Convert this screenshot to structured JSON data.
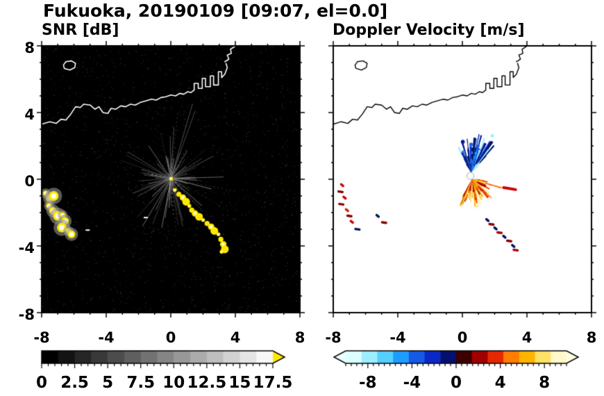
{
  "header": {
    "title": "Fukuoka, 20190109 [09:07, el=0.0]"
  },
  "chart_data": [
    {
      "type": "heatmap",
      "title": "SNR [dB]",
      "xlabel": "",
      "ylabel": "",
      "xlim": [
        -8,
        8
      ],
      "ylim": [
        -8,
        8
      ],
      "xticks": [
        -8,
        -4,
        0,
        4,
        8
      ],
      "yticks": [
        8,
        4,
        0,
        -4,
        -8
      ],
      "xticklabels": [
        "-8",
        "-4",
        "0",
        "4",
        "8"
      ],
      "yticklabels": [
        "8",
        "4",
        "0",
        "-4",
        "-8"
      ],
      "minor_tick_step": 1,
      "background": "#000000",
      "grid": false,
      "colorbar": {
        "vmin": 0,
        "vmax": 17.5,
        "ticks": [
          0,
          2.5,
          5,
          7.5,
          10,
          12.5,
          15,
          17.5
        ],
        "tick_labels": [
          "0",
          "2.5",
          "5",
          "7.5",
          "10",
          "12.5",
          "15",
          "17.5"
        ],
        "minor_step": 0.5,
        "colors": [
          "#000000",
          "#131313",
          "#262626",
          "#393939",
          "#4c4c4c",
          "#5f5f5f",
          "#727272",
          "#858585",
          "#989898",
          "#ababab",
          "#bebebe",
          "#d1d1d1",
          "#e4e4e4",
          "#f7f7f7"
        ],
        "over_arrow": "#ffe800"
      },
      "features": {
        "radar_center": [
          0.0,
          0.05
        ],
        "streaks": {
          "seed": 7,
          "count": 130,
          "len_min": 0.3,
          "len_max": 3.4
        },
        "noise": {
          "seed": 3,
          "count": 1700
        },
        "echo_colors": {
          "halo": "#969696",
          "body": "#ffe800",
          "core": "#ffffff"
        },
        "echo_chain_left": [
          [
            -7.75,
            -0.85
          ],
          [
            -7.5,
            -1.15
          ],
          [
            -7.25,
            -1.0
          ],
          [
            -7.55,
            -1.6
          ],
          [
            -7.3,
            -1.9
          ],
          [
            -7.0,
            -2.2
          ],
          [
            -6.7,
            -2.15
          ],
          [
            -6.55,
            -2.5
          ],
          [
            -6.75,
            -2.9
          ],
          [
            -6.35,
            -3.1
          ],
          [
            -6.15,
            -3.3
          ]
        ],
        "echo_chain_diag": [
          [
            0.25,
            -0.65
          ],
          [
            0.5,
            -0.9
          ],
          [
            0.75,
            -1.1
          ],
          [
            0.95,
            -1.35
          ],
          [
            1.15,
            -1.6
          ],
          [
            1.3,
            -1.85
          ],
          [
            1.5,
            -2.05
          ],
          [
            1.75,
            -2.25
          ],
          [
            2.0,
            -2.45
          ],
          [
            2.25,
            -2.65
          ],
          [
            2.5,
            -2.85
          ],
          [
            2.7,
            -3.1
          ],
          [
            2.95,
            -3.3
          ],
          [
            3.1,
            -3.6
          ],
          [
            3.25,
            -3.9
          ],
          [
            3.35,
            -4.2
          ],
          [
            3.15,
            -4.35
          ]
        ],
        "extra_marks": [
          [
            -1.55,
            -2.3
          ],
          [
            -5.15,
            -3.05
          ]
        ]
      }
    },
    {
      "type": "heatmap",
      "title": "Doppler Velocity [m/s]",
      "xlabel": "",
      "ylabel": "",
      "xlim": [
        -8,
        8
      ],
      "ylim": [
        -8,
        8
      ],
      "xticks": [
        -8,
        -4,
        0,
        4,
        8
      ],
      "yticks": [
        8,
        4,
        0,
        -4,
        -8
      ],
      "xticklabels": [
        "-8",
        "-4",
        "0",
        "4",
        "8"
      ],
      "yticklabels": [
        "8",
        "4",
        "0",
        "-4",
        "-8"
      ],
      "minor_tick_step": 1,
      "background": "#ffffff",
      "grid": false,
      "colorbar": {
        "vmin": -10,
        "vmax": 10,
        "ticks": [
          -8,
          -4,
          0,
          4,
          8
        ],
        "tick_labels": [
          "-8",
          "-4",
          "0",
          "4",
          "8"
        ],
        "minor_step": 0.5,
        "colors": [
          "#dcffff",
          "#9ceeff",
          "#55d0ff",
          "#1f9cff",
          "#155ae6",
          "#0a28c8",
          "#04106e",
          "#3c0000",
          "#a00000",
          "#e62800",
          "#ff7d00",
          "#ffb400",
          "#ffe165",
          "#fff8c8"
        ],
        "under_arrow": "#eaffff",
        "over_arrow": "#ffffe2"
      },
      "features": {
        "blue_fan": {
          "seed": 11,
          "center": [
            0.55,
            0.4
          ],
          "count": 85,
          "ang": [
            48,
            118
          ],
          "len": [
            0.45,
            2.5
          ],
          "sector": {
            "r": 0.55,
            "color": "#1e82ff"
          },
          "colors": [
            "#9df2ff",
            "#49ccff",
            "#1e96ff",
            "#1560ee",
            "#0a2ad2",
            "#071a96",
            "#03105f"
          ]
        },
        "orange_fan": {
          "seed": 12,
          "center": [
            0.6,
            0.0
          ],
          "count": 115,
          "ang": [
            -118,
            -4
          ],
          "len": [
            0.3,
            1.9
          ],
          "sector": {
            "r": 0.78,
            "color": "#ff8200"
          },
          "colors": [
            "#fff0a0",
            "#ffd24d",
            "#ffaa00",
            "#ff7800",
            "#f04800",
            "#cc1e00",
            "#a00000"
          ]
        },
        "center_hole": {
          "xy": [
            0.5,
            0.2
          ],
          "r": 0.22
        },
        "left_specks": [
          [
            -7.45,
            -0.35,
            "#cc0000"
          ],
          [
            -7.55,
            -0.75,
            "#7a0000"
          ],
          [
            -7.3,
            -1.1,
            "#cc0000"
          ],
          [
            -7.5,
            -1.5,
            "#9c0000"
          ],
          [
            -7.15,
            -1.85,
            "#cc2200"
          ],
          [
            -7.0,
            -2.2,
            "#8a0000"
          ],
          [
            -6.85,
            -2.55,
            "#cc0000"
          ],
          [
            -6.5,
            -3.0,
            "#001060"
          ],
          [
            -5.25,
            -2.2,
            "#001060"
          ],
          [
            -4.85,
            -2.6,
            "#8a0000"
          ]
        ],
        "diag_specks": [
          [
            1.55,
            -2.45,
            "#001060"
          ],
          [
            1.8,
            -2.7,
            "#8a0000"
          ],
          [
            2.05,
            -2.95,
            "#001060"
          ],
          [
            2.3,
            -3.2,
            "#aa0000"
          ],
          [
            2.6,
            -3.45,
            "#001060"
          ],
          [
            2.9,
            -3.7,
            "#8a0000"
          ],
          [
            3.15,
            -4.0,
            "#001060"
          ],
          [
            3.3,
            -4.25,
            "#aa0000"
          ]
        ],
        "dash_right": {
          "from": [
            2.55,
            -0.5
          ],
          "to": [
            3.3,
            -0.62
          ],
          "color": "#cc0000",
          "width": 4
        }
      }
    }
  ],
  "coastline": {
    "segments": [
      {
        "closed": false,
        "points": [
          [
            -8.0,
            3.3
          ],
          [
            -7.5,
            3.45
          ],
          [
            -7.1,
            3.35
          ],
          [
            -6.8,
            3.6
          ],
          [
            -6.5,
            3.55
          ],
          [
            -6.2,
            3.9
          ],
          [
            -5.9,
            4.35
          ],
          [
            -5.6,
            4.3
          ],
          [
            -5.4,
            4.5
          ],
          [
            -5.0,
            4.45
          ],
          [
            -4.7,
            4.2
          ],
          [
            -4.45,
            4.35
          ],
          [
            -4.2,
            4.0
          ],
          [
            -3.9,
            3.95
          ],
          [
            -3.7,
            4.25
          ],
          [
            -3.4,
            4.2
          ],
          [
            -3.1,
            4.4
          ],
          [
            -2.8,
            4.35
          ],
          [
            -2.5,
            4.5
          ],
          [
            -2.2,
            4.45
          ],
          [
            -1.9,
            4.6
          ],
          [
            -1.55,
            4.7
          ],
          [
            -1.2,
            4.8
          ],
          [
            -0.9,
            4.75
          ],
          [
            -0.6,
            4.9
          ],
          [
            -0.3,
            4.95
          ],
          [
            0.0,
            5.05
          ],
          [
            0.3,
            5.0
          ],
          [
            0.55,
            5.15
          ],
          [
            0.8,
            5.1
          ],
          [
            1.05,
            5.25
          ],
          [
            1.25,
            5.2
          ],
          [
            1.45,
            5.35
          ],
          [
            1.45,
            5.75
          ],
          [
            1.7,
            5.75
          ],
          [
            1.7,
            5.45
          ],
          [
            1.95,
            5.45
          ],
          [
            1.95,
            6.05
          ],
          [
            2.15,
            6.05
          ],
          [
            2.15,
            5.55
          ],
          [
            2.45,
            5.55
          ],
          [
            2.45,
            6.2
          ],
          [
            2.65,
            6.2
          ],
          [
            2.65,
            5.65
          ],
          [
            2.95,
            5.65
          ],
          [
            2.95,
            6.45
          ],
          [
            3.15,
            6.45
          ],
          [
            3.15,
            6.1
          ],
          [
            3.35,
            6.3
          ],
          [
            3.5,
            6.7
          ],
          [
            3.42,
            6.95
          ]
        ]
      },
      {
        "closed": false,
        "points": [
          [
            3.35,
            7.05
          ],
          [
            3.6,
            7.2
          ],
          [
            3.5,
            7.45
          ],
          [
            3.75,
            7.55
          ],
          [
            3.7,
            7.8
          ],
          [
            3.95,
            7.95
          ],
          [
            3.9,
            8.1
          ]
        ]
      },
      {
        "closed": true,
        "points": [
          [
            -6.6,
            6.65
          ],
          [
            -6.25,
            6.55
          ],
          [
            -5.95,
            6.7
          ],
          [
            -5.9,
            6.95
          ],
          [
            -6.15,
            7.1
          ],
          [
            -6.5,
            7.05
          ],
          [
            -6.65,
            6.85
          ]
        ]
      }
    ]
  }
}
